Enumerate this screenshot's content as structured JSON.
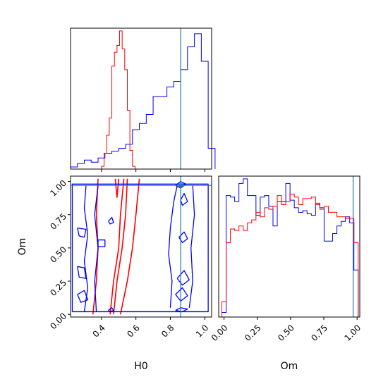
{
  "chart_data": {
    "type": "corner",
    "parameters": [
      "H0",
      "Om"
    ],
    "truth": {
      "H0": 0.86,
      "Om": 0.97
    },
    "colors": {
      "model_a": "#0000ff",
      "model_b": "#ff0000",
      "truth": "#1f77b4"
    },
    "panels": [
      {
        "id": "h0-marginal",
        "type": "histogram",
        "xlim": [
          0.22,
          1.04
        ],
        "x_ticks": [
          0.4,
          0.6,
          0.8,
          1.0
        ],
        "series": [
          {
            "key": "model_a",
            "bin_edges": [
              0.22,
              0.26,
              0.3,
              0.34,
              0.38,
              0.42,
              0.46,
              0.5,
              0.54,
              0.58,
              0.62,
              0.66,
              0.7,
              0.74,
              0.78,
              0.82,
              0.86,
              0.9,
              0.94,
              0.98,
              1.02,
              1.06
            ],
            "heights": [
              0.3,
              0.8,
              1.3,
              1.0,
              1.6,
              2.3,
              2.6,
              3.0,
              3.6,
              5.7,
              6.6,
              7.9,
              10.5,
              10.5,
              11.9,
              12.7,
              14.4,
              17.7,
              19.6,
              15.6,
              3.0
            ]
          },
          {
            "key": "model_b",
            "bin_edges": [
              0.4,
              0.415,
              0.43,
              0.445,
              0.46,
              0.475,
              0.49,
              0.505,
              0.52,
              0.535,
              0.55,
              0.565,
              0.58,
              0.595
            ],
            "heights": [
              0.4,
              2.3,
              4.9,
              7.4,
              14.9,
              16.9,
              17.9,
              20.0,
              17.4,
              14.4,
              8.5,
              2.7,
              0.4
            ]
          }
        ]
      },
      {
        "id": "om-marginal",
        "type": "histogram",
        "xlim": [
          -0.04,
          1.02
        ],
        "x_ticks": [
          0.0,
          0.25,
          0.5,
          0.75,
          1.0
        ],
        "x_tick_labels": [
          "0.00",
          "0.25",
          "0.50",
          "0.75",
          "1.00"
        ],
        "series": [
          {
            "key": "model_a",
            "bin_edges": [
              -0.016,
              0.016,
              0.048,
              0.08,
              0.112,
              0.144,
              0.176,
              0.208,
              0.24,
              0.272,
              0.304,
              0.336,
              0.368,
              0.4,
              0.432,
              0.464,
              0.496,
              0.528,
              0.56,
              0.592,
              0.624,
              0.656,
              0.688,
              0.72,
              0.752,
              0.784,
              0.816,
              0.848,
              0.88,
              0.912,
              0.944,
              0.976,
              1.008
            ],
            "heights": [
              0.3,
              8.0,
              7.9,
              7.6,
              8.8,
              9.1,
              8.0,
              8.0,
              6.7,
              7.9,
              8.0,
              7.3,
              6.0,
              7.6,
              7.6,
              8.8,
              7.7,
              7.2,
              6.9,
              7.0,
              6.8,
              6.7,
              7.5,
              7.2,
              5.0,
              5.0,
              5.5,
              6.0,
              6.3,
              6.6,
              6.2,
              3.1
            ]
          },
          {
            "key": "model_b",
            "bin_edges": [
              -0.016,
              0.016,
              0.048,
              0.08,
              0.112,
              0.144,
              0.176,
              0.208,
              0.24,
              0.272,
              0.304,
              0.336,
              0.368,
              0.4,
              0.432,
              0.464,
              0.496,
              0.528,
              0.56,
              0.592,
              0.624,
              0.656,
              0.688,
              0.72,
              0.752,
              0.784,
              0.816,
              0.848,
              0.88,
              0.912,
              0.944,
              0.976,
              1.008
            ],
            "heights": [
              1.0,
              4.9,
              5.8,
              5.7,
              6.0,
              5.7,
              6.2,
              6.4,
              6.9,
              6.6,
              7.2,
              7.1,
              7.3,
              8.0,
              7.4,
              7.6,
              8.1,
              7.9,
              7.4,
              7.8,
              7.8,
              7.9,
              7.4,
              7.1,
              7.3,
              6.9,
              6.9,
              6.6,
              6.6,
              6.5,
              6.5,
              4.9
            ]
          }
        ]
      },
      {
        "id": "om-vs-h0-contours",
        "type": "contour",
        "xlabel": "H0",
        "ylabel": "Om",
        "xlim": [
          0.22,
          1.04
        ],
        "ylim": [
          -0.02,
          1.04
        ],
        "x_ticks": [
          0.4,
          0.6,
          0.8,
          1.0
        ],
        "x_tick_labels": [
          "0.4",
          "0.6",
          "0.8",
          "1.0"
        ],
        "y_ticks": [
          0.0,
          0.25,
          0.5,
          0.75,
          1.0
        ],
        "y_tick_labels": [
          "0.00",
          "0.25",
          "0.50",
          "0.75",
          "1.00"
        ],
        "series": [
          {
            "key": "model_b",
            "contours": [
              [
                [
                  0.35,
                  0.0
                ],
                [
                  0.37,
                  0.25
                ],
                [
                  0.38,
                  0.5
                ],
                [
                  0.37,
                  0.75
                ],
                [
                  0.38,
                  1.02
                ]
              ],
              [
                [
                  0.45,
                  0.0
                ],
                [
                  0.47,
                  0.25
                ],
                [
                  0.5,
                  0.5
                ],
                [
                  0.51,
                  0.75
                ],
                [
                  0.53,
                  1.02
                ]
              ],
              [
                [
                  0.47,
                  0.0
                ],
                [
                  0.49,
                  0.25
                ],
                [
                  0.52,
                  0.5
                ],
                [
                  0.54,
                  0.75
                ],
                [
                  0.55,
                  1.02
                ]
              ],
              [
                [
                  0.51,
                  0.0
                ],
                [
                  0.55,
                  0.25
                ],
                [
                  0.58,
                  0.5
                ],
                [
                  0.6,
                  0.75
                ],
                [
                  0.62,
                  1.02
                ]
              ],
              [
                [
                  0.48,
                  1.02
                ],
                [
                  0.49,
                  0.88
                ],
                [
                  0.5,
                  1.02
                ]
              ]
            ]
          },
          {
            "key": "model_a",
            "contours": [
              [
                [
                  0.23,
                  0.02
                ],
                [
                  0.23,
                  0.98
                ],
                [
                  1.02,
                  0.98
                ],
                [
                  1.02,
                  0.02
                ],
                [
                  0.23,
                  0.02
                ]
              ],
              [
                [
                  0.3,
                  0.02
                ],
                [
                  0.32,
                  0.2
                ],
                [
                  0.3,
                  0.4
                ],
                [
                  0.32,
                  0.6
                ],
                [
                  0.3,
                  0.8
                ],
                [
                  0.31,
                  0.97
                ]
              ],
              [
                [
                  0.37,
                  0.02
                ],
                [
                  0.36,
                  0.25
                ],
                [
                  0.38,
                  0.5
                ],
                [
                  0.36,
                  0.75
                ],
                [
                  0.38,
                  0.97
                ]
              ],
              [
                [
                  0.26,
                  0.15
                ],
                [
                  0.3,
                  0.18
                ],
                [
                  0.32,
                  0.11
                ],
                [
                  0.28,
                  0.09
                ],
                [
                  0.26,
                  0.15
                ]
              ],
              [
                [
                  0.26,
                  0.36
                ],
                [
                  0.3,
                  0.35
                ],
                [
                  0.31,
                  0.27
                ],
                [
                  0.27,
                  0.28
                ],
                [
                  0.26,
                  0.36
                ]
              ],
              [
                [
                  0.26,
                  0.65
                ],
                [
                  0.31,
                  0.64
                ],
                [
                  0.3,
                  0.58
                ],
                [
                  0.27,
                  0.59
                ],
                [
                  0.26,
                  0.65
                ]
              ],
              [
                [
                  0.38,
                  0.56
                ],
                [
                  0.42,
                  0.56
                ],
                [
                  0.42,
                  0.51
                ],
                [
                  0.38,
                  0.51
                ],
                [
                  0.38,
                  0.56
                ]
              ],
              [
                [
                  0.44,
                  0.03
                ],
                [
                  0.46,
                  0.05
                ],
                [
                  0.47,
                  0.03
                ],
                [
                  0.45,
                  0.02
                ],
                [
                  0.44,
                  0.03
                ]
              ],
              [
                [
                  0.44,
                  0.7
                ],
                [
                  0.46,
                  0.73
                ],
                [
                  0.47,
                  0.69
                ],
                [
                  0.45,
                  0.68
                ],
                [
                  0.44,
                  0.7
                ]
              ],
              [
                [
                  0.83,
                  0.03
                ],
                [
                  0.86,
                  0.05
                ],
                [
                  0.9,
                  0.04
                ],
                [
                  0.87,
                  0.02
                ],
                [
                  0.83,
                  0.03
                ]
              ],
              [
                [
                  0.83,
                  0.97
                ],
                [
                  0.86,
                  1.0
                ],
                [
                  0.89,
                  0.98
                ],
                [
                  0.86,
                  0.95
                ],
                [
                  0.83,
                  0.97
                ]
              ],
              [
                [
                  0.8,
                  0.05
                ],
                [
                  0.81,
                  0.25
                ],
                [
                  0.79,
                  0.45
                ],
                [
                  0.8,
                  0.65
                ],
                [
                  0.82,
                  0.85
                ],
                [
                  0.84,
                  0.97
                ]
              ],
              [
                [
                  0.91,
                  0.05
                ],
                [
                  0.93,
                  0.25
                ],
                [
                  0.92,
                  0.5
                ],
                [
                  0.94,
                  0.75
                ],
                [
                  0.93,
                  0.97
                ]
              ],
              [
                [
                  0.83,
                  0.15
                ],
                [
                  0.87,
                  0.2
                ],
                [
                  0.9,
                  0.14
                ],
                [
                  0.86,
                  0.1
                ],
                [
                  0.83,
                  0.15
                ]
              ],
              [
                [
                  0.84,
                  0.27
                ],
                [
                  0.88,
                  0.33
                ],
                [
                  0.91,
                  0.26
                ],
                [
                  0.87,
                  0.22
                ],
                [
                  0.84,
                  0.27
                ]
              ],
              [
                [
                  0.85,
                  0.58
                ],
                [
                  0.88,
                  0.62
                ],
                [
                  0.9,
                  0.57
                ],
                [
                  0.87,
                  0.54
                ],
                [
                  0.85,
                  0.58
                ]
              ],
              [
                [
                  0.86,
                  0.86
                ],
                [
                  0.88,
                  0.91
                ],
                [
                  0.9,
                  0.85
                ],
                [
                  0.87,
                  0.82
                ],
                [
                  0.86,
                  0.86
                ]
              ]
            ]
          }
        ]
      }
    ]
  }
}
